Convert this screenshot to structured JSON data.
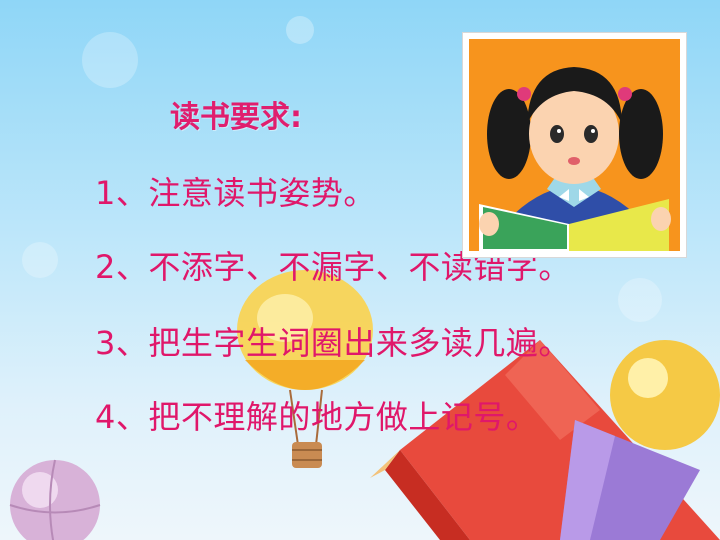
{
  "slide": {
    "heading": "读书要求:",
    "items": [
      "1、注意读书姿势。",
      "2、不添字、不漏字、不读错字。",
      "3、把生字生词圈出来多读几遍。",
      "4、把不理解的地方做上记号。"
    ]
  },
  "illustration": {
    "subject": "girl-reading-book-icon",
    "background_color": "#f7941d"
  },
  "decorations": [
    "hot-air-balloon-icon",
    "pencil-icon",
    "balloon-icon",
    "crayon-icon"
  ]
}
